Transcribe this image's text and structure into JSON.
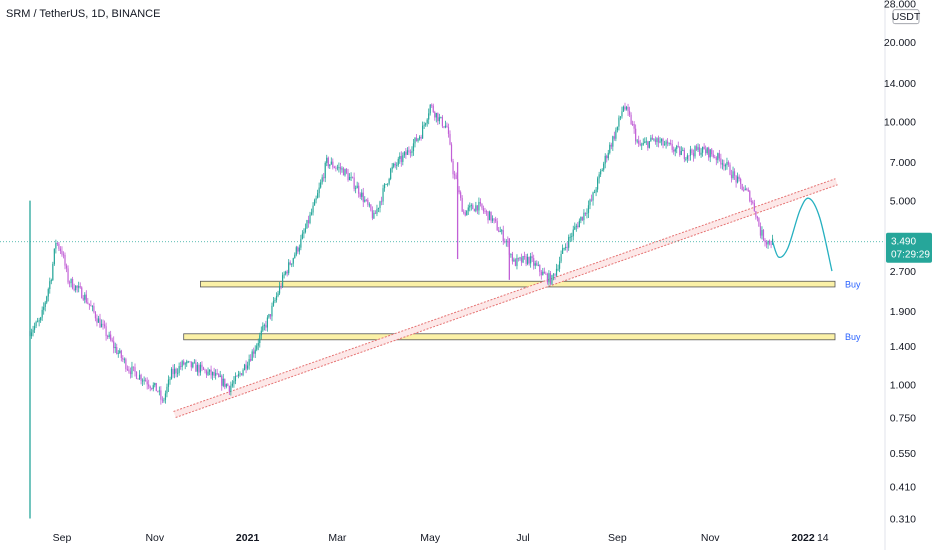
{
  "header": {
    "title": "SRM / TetherUS, 1D, BINANCE"
  },
  "axis": {
    "currency": "USDT"
  },
  "price_tag": {
    "price": "3.490",
    "countdown": "07:29:29"
  },
  "colors": {
    "up": "#26a69a",
    "down": "#c160d6",
    "zone_fill": "#fbf1a7",
    "zone_border": "#555555",
    "trendline": "#e57373",
    "projection": "#26b0c0",
    "price_line": "#26a69a",
    "buy_label": "#2962ff"
  },
  "chart_data": {
    "type": "candlestick",
    "title": "SRM / TetherUS, 1D, BINANCE",
    "scale": "log",
    "ylim": [
      0.31,
      28.0
    ],
    "y_ticks": [
      {
        "value": 28.0,
        "label": "28.000"
      },
      {
        "value": 20.0,
        "label": "20.000"
      },
      {
        "value": 14.0,
        "label": "14.000"
      },
      {
        "value": 10.0,
        "label": "10.000"
      },
      {
        "value": 7.0,
        "label": "7.000"
      },
      {
        "value": 5.0,
        "label": "5.000"
      },
      {
        "value": 2.7,
        "label": "2.700"
      },
      {
        "value": 1.9,
        "label": "1.900"
      },
      {
        "value": 1.4,
        "label": "1.400"
      },
      {
        "value": 1.0,
        "label": "1.000"
      },
      {
        "value": 0.75,
        "label": "0.750"
      },
      {
        "value": 0.55,
        "label": "0.550"
      },
      {
        "value": 0.41,
        "label": "0.410"
      },
      {
        "value": 0.31,
        "label": "0.310"
      }
    ],
    "xlim": [
      "2020-08-11",
      "2022-01-22"
    ],
    "x_ticks": [
      {
        "date": "2020-09-01",
        "label": "Sep"
      },
      {
        "date": "2020-11-01",
        "label": "Nov"
      },
      {
        "date": "2021-01-01",
        "label": "2021"
      },
      {
        "date": "2021-03-01",
        "label": "Mar"
      },
      {
        "date": "2021-05-01",
        "label": "May"
      },
      {
        "date": "2021-07-01",
        "label": "Jul"
      },
      {
        "date": "2021-09-01",
        "label": "Sep"
      },
      {
        "date": "2021-11-01",
        "label": "Nov"
      },
      {
        "date": "2022-01-01",
        "label": "2022"
      },
      {
        "date": "2022-01-14",
        "label": "14"
      }
    ],
    "last_price": 3.49,
    "price_path": [
      [
        "2020-08-11",
        1.6
      ],
      [
        "2020-08-18",
        1.75
      ],
      [
        "2020-08-25",
        2.6
      ],
      [
        "2020-08-28",
        3.5
      ],
      [
        "2020-09-01",
        3.2
      ],
      [
        "2020-09-05",
        2.5
      ],
      [
        "2020-09-15",
        2.2
      ],
      [
        "2020-09-25",
        1.75
      ],
      [
        "2020-10-05",
        1.4
      ],
      [
        "2020-10-15",
        1.15
      ],
      [
        "2020-10-25",
        1.05
      ],
      [
        "2020-11-03",
        0.95
      ],
      [
        "2020-11-06",
        0.85
      ],
      [
        "2020-11-12",
        1.1
      ],
      [
        "2020-11-20",
        1.2
      ],
      [
        "2020-11-30",
        1.15
      ],
      [
        "2020-12-10",
        1.08
      ],
      [
        "2020-12-20",
        0.98
      ],
      [
        "2020-12-25",
        1.05
      ],
      [
        "2021-01-05",
        1.35
      ],
      [
        "2021-01-15",
        1.8
      ],
      [
        "2021-01-25",
        2.6
      ],
      [
        "2021-02-05",
        3.5
      ],
      [
        "2021-02-15",
        5.0
      ],
      [
        "2021-02-22",
        7.0
      ],
      [
        "2021-03-05",
        6.5
      ],
      [
        "2021-03-15",
        5.5
      ],
      [
        "2021-03-25",
        4.3
      ],
      [
        "2021-04-05",
        6.5
      ],
      [
        "2021-04-15",
        7.5
      ],
      [
        "2021-04-25",
        9.0
      ],
      [
        "2021-05-01",
        11.5
      ],
      [
        "2021-05-08",
        10.0
      ],
      [
        "2021-05-12",
        9.5
      ],
      [
        "2021-05-16",
        6.5
      ],
      [
        "2021-05-23",
        4.5
      ],
      [
        "2021-06-01",
        4.8
      ],
      [
        "2021-06-10",
        4.3
      ],
      [
        "2021-06-20",
        3.5
      ],
      [
        "2021-06-25",
        2.9
      ],
      [
        "2021-07-05",
        3.0
      ],
      [
        "2021-07-15",
        2.6
      ],
      [
        "2021-07-20",
        2.5
      ],
      [
        "2021-07-28",
        3.3
      ],
      [
        "2021-08-05",
        4.0
      ],
      [
        "2021-08-15",
        5.0
      ],
      [
        "2021-08-25",
        7.5
      ],
      [
        "2021-09-01",
        9.5
      ],
      [
        "2021-09-05",
        11.5
      ],
      [
        "2021-09-10",
        10.0
      ],
      [
        "2021-09-15",
        8.0
      ],
      [
        "2021-09-25",
        8.5
      ],
      [
        "2021-10-05",
        8.0
      ],
      [
        "2021-10-15",
        7.5
      ],
      [
        "2021-10-25",
        7.8
      ],
      [
        "2021-11-01",
        7.6
      ],
      [
        "2021-11-10",
        7.0
      ],
      [
        "2021-11-20",
        5.8
      ],
      [
        "2021-11-27",
        5.2
      ],
      [
        "2021-12-01",
        4.5
      ],
      [
        "2021-12-04",
        3.8
      ],
      [
        "2021-12-08",
        3.5
      ],
      [
        "2021-12-12",
        3.49
      ]
    ],
    "spikes": [
      {
        "date": "2020-08-11",
        "high": 5.0,
        "low": 0.31
      },
      {
        "date": "2021-05-19",
        "high": 7.0,
        "low": 3.0
      },
      {
        "date": "2021-06-22",
        "high": 3.6,
        "low": 2.5
      }
    ],
    "annotations": {
      "trendline": {
        "from": [
          "2020-11-14",
          0.77
        ],
        "to": [
          "2022-01-23",
          5.9
        ]
      },
      "zones": [
        {
          "from": "2020-12-01",
          "to": "2022-01-22",
          "low": 2.35,
          "high": 2.47,
          "label": "Buy"
        },
        {
          "from": "2020-11-20",
          "to": "2022-01-22",
          "low": 1.48,
          "high": 1.56,
          "label": "Buy"
        }
      ],
      "projection": [
        [
          "2021-12-12",
          3.49
        ],
        [
          "2021-12-16",
          3.05
        ],
        [
          "2021-12-22",
          3.3
        ],
        [
          "2021-12-30",
          4.6
        ],
        [
          "2022-01-05",
          5.1
        ],
        [
          "2022-01-12",
          4.3
        ],
        [
          "2022-01-20",
          2.7
        ]
      ]
    }
  }
}
